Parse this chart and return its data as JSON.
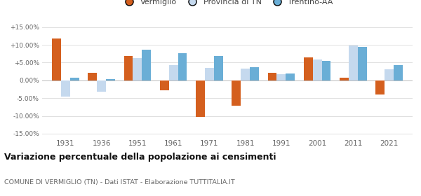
{
  "years": [
    1931,
    1936,
    1951,
    1961,
    1971,
    1981,
    1991,
    2001,
    2011,
    2021
  ],
  "vermiglio": [
    11.8,
    2.2,
    6.8,
    -2.8,
    -10.2,
    -7.2,
    2.1,
    6.5,
    0.8,
    -4.0
  ],
  "provincia_tn": [
    -4.6,
    -3.2,
    6.3,
    4.3,
    3.5,
    3.4,
    1.7,
    5.9,
    9.9,
    3.1
  ],
  "trentino_aa": [
    0.8,
    0.4,
    8.7,
    7.7,
    6.8,
    3.7,
    2.0,
    5.5,
    9.5,
    4.2
  ],
  "color_vermiglio": "#d45f1e",
  "color_provincia": "#c5d9ee",
  "color_trentino": "#6aaed6",
  "title": "Variazione percentuale della popolazione ai censimenti",
  "subtitle": "COMUNE DI VERMIGLIO (TN) - Dati ISTAT - Elaborazione TUTTITALIA.IT",
  "ylim": [
    -16,
    16
  ],
  "yticks": [
    -15,
    -10,
    -5,
    0,
    5,
    10,
    15
  ],
  "background_color": "#ffffff",
  "grid_color": "#e0e0e0"
}
